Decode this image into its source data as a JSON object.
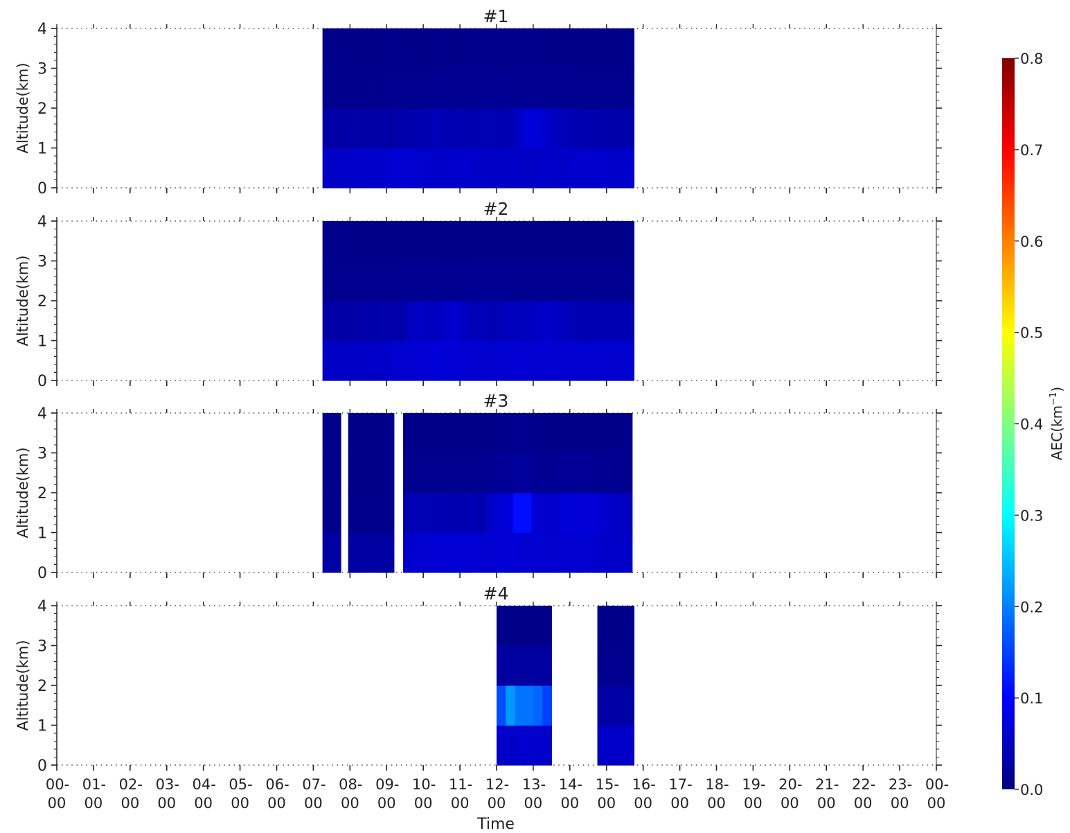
{
  "chart_data": {
    "type": "heatmap",
    "colormap": "jet",
    "xlabel": "Time",
    "ylabel": "Altitude(km)",
    "xlim": [
      0,
      24
    ],
    "ylim": [
      0,
      4
    ],
    "x_ticks": [
      0,
      1,
      2,
      3,
      4,
      5,
      6,
      7,
      8,
      9,
      10,
      11,
      12,
      13,
      14,
      15,
      16,
      17,
      18,
      19,
      20,
      21,
      22,
      23,
      24
    ],
    "x_tick_labels": [
      [
        "00-",
        "00"
      ],
      [
        "01-",
        "00"
      ],
      [
        "02-",
        "00"
      ],
      [
        "03-",
        "00"
      ],
      [
        "04-",
        "00"
      ],
      [
        "05-",
        "00"
      ],
      [
        "06-",
        "00"
      ],
      [
        "07-",
        "00"
      ],
      [
        "08-",
        "00"
      ],
      [
        "09-",
        "00"
      ],
      [
        "10-",
        "00"
      ],
      [
        "11-",
        "00"
      ],
      [
        "12-",
        "00"
      ],
      [
        "13-",
        "00"
      ],
      [
        "14-",
        "00"
      ],
      [
        "15-",
        "00"
      ],
      [
        "16-",
        "00"
      ],
      [
        "17-",
        "00"
      ],
      [
        "18-",
        "00"
      ],
      [
        "19-",
        "00"
      ],
      [
        "20-",
        "00"
      ],
      [
        "21-",
        "00"
      ],
      [
        "22-",
        "00"
      ],
      [
        "23-",
        "00"
      ],
      [
        "00-",
        "00"
      ]
    ],
    "y_ticks": [
      0,
      1,
      2,
      3,
      4
    ],
    "altitude_bins": [
      [
        0,
        1
      ],
      [
        1,
        2
      ],
      [
        2,
        3
      ],
      [
        3,
        4
      ]
    ],
    "colorbar": {
      "label": "AEC(km",
      "label_superscript": "−1",
      "label_close": ")",
      "min": 0.0,
      "max": 0.8,
      "ticks": [
        0.0,
        0.1,
        0.2,
        0.3,
        0.4,
        0.5,
        0.6,
        0.7,
        0.8
      ],
      "tick_labels": [
        "0.0",
        "0.1",
        "0.2",
        "0.3",
        "0.4",
        "0.5",
        "0.6",
        "0.7",
        "0.8"
      ]
    },
    "panels": [
      {
        "title": "#1",
        "segments": [
          {
            "start": 7.25,
            "step": 0.25,
            "rows": [
              [
                0.055,
                0.056,
                0.058,
                0.058,
                0.06,
                0.058,
                0.06,
                0.062,
                0.065,
                0.063,
                0.062,
                0.06,
                0.058,
                0.06,
                0.061,
                0.06,
                0.058,
                0.057,
                0.056,
                0.055,
                0.058,
                0.055,
                0.054,
                0.056,
                0.057,
                0.058,
                0.058,
                0.059,
                0.06,
                0.06,
                0.06,
                0.058,
                0.058,
                0.059
              ],
              [
                0.03,
                0.028,
                0.03,
                0.03,
                0.031,
                0.03,
                0.032,
                0.028,
                0.035,
                0.035,
                0.038,
                0.038,
                0.045,
                0.04,
                0.04,
                0.04,
                0.038,
                0.042,
                0.042,
                0.04,
                0.04,
                0.055,
                0.072,
                0.07,
                0.058,
                0.05,
                0.045,
                0.04,
                0.036,
                0.035,
                0.035,
                0.034,
                0.033,
                0.034
              ],
              [
                0.012,
                0.01,
                0.01,
                0.01,
                0.01,
                0.01,
                0.012,
                0.012,
                0.014,
                0.012,
                0.012,
                0.012,
                0.014,
                0.015,
                0.013,
                0.013,
                0.014,
                0.015,
                0.015,
                0.015,
                0.014,
                0.014,
                0.015,
                0.014,
                0.014,
                0.014,
                0.013,
                0.012,
                0.012,
                0.012,
                0.012,
                0.012,
                0.012,
                0.012
              ],
              [
                0.008,
                0.008,
                0.008,
                0.008,
                0.008,
                0.008,
                0.009,
                0.009,
                0.01,
                0.009,
                0.009,
                0.009,
                0.01,
                0.01,
                0.009,
                0.009,
                0.01,
                0.01,
                0.01,
                0.01,
                0.01,
                0.01,
                0.01,
                0.01,
                0.009,
                0.009,
                0.009,
                0.009,
                0.009,
                0.009,
                0.009,
                0.009,
                0.009,
                0.009
              ]
            ]
          }
        ]
      },
      {
        "title": "#2",
        "segments": [
          {
            "start": 7.25,
            "step": 0.25,
            "rows": [
              [
                0.055,
                0.055,
                0.056,
                0.056,
                0.058,
                0.058,
                0.058,
                0.06,
                0.062,
                0.064,
                0.066,
                0.068,
                0.07,
                0.068,
                0.066,
                0.064,
                0.062,
                0.062,
                0.062,
                0.063,
                0.064,
                0.065,
                0.064,
                0.064,
                0.065,
                0.064,
                0.064,
                0.064,
                0.064,
                0.063,
                0.062,
                0.062,
                0.062,
                0.062
              ],
              [
                0.03,
                0.03,
                0.03,
                0.03,
                0.032,
                0.032,
                0.035,
                0.033,
                0.03,
                0.048,
                0.055,
                0.05,
                0.048,
                0.058,
                0.06,
                0.05,
                0.045,
                0.045,
                0.04,
                0.045,
                0.05,
                0.048,
                0.05,
                0.052,
                0.06,
                0.052,
                0.048,
                0.042,
                0.04,
                0.04,
                0.04,
                0.04,
                0.04,
                0.04
              ],
              [
                0.012,
                0.012,
                0.012,
                0.012,
                0.012,
                0.012,
                0.012,
                0.012,
                0.014,
                0.014,
                0.014,
                0.014,
                0.014,
                0.013,
                0.013,
                0.013,
                0.015,
                0.015,
                0.015,
                0.015,
                0.014,
                0.014,
                0.014,
                0.014,
                0.014,
                0.014,
                0.014,
                0.014,
                0.014,
                0.014,
                0.014,
                0.014,
                0.014,
                0.014
              ],
              [
                0.008,
                0.008,
                0.008,
                0.008,
                0.008,
                0.008,
                0.008,
                0.008,
                0.008,
                0.008,
                0.008,
                0.008,
                0.008,
                0.008,
                0.008,
                0.008,
                0.009,
                0.009,
                0.009,
                0.009,
                0.009,
                0.009,
                0.009,
                0.009,
                0.008,
                0.008,
                0.008,
                0.008,
                0.008,
                0.008,
                0.008,
                0.008,
                0.008,
                0.008
              ]
            ]
          }
        ]
      },
      {
        "title": "#3",
        "segments": [
          {
            "start": 7.25,
            "step": 0.5,
            "rows": [
              [
                0.028
              ],
              [
                0.01
              ],
              [
                0.009
              ],
              [
                0.009
              ]
            ]
          },
          {
            "start": 7.95,
            "step": 1.25,
            "rows": [
              [
                0.028
              ],
              [
                0.01
              ],
              [
                0.009
              ],
              [
                0.009
              ]
            ]
          },
          {
            "start": 9.45,
            "step": 0.25,
            "rows": [
              [
                0.06,
                0.062,
                0.065,
                0.065,
                0.066,
                0.066,
                0.066,
                0.066,
                0.064,
                0.064,
                0.066,
                0.066,
                0.066,
                0.064,
                0.064,
                0.062,
                0.062,
                0.062,
                0.064,
                0.063,
                0.062,
                0.06,
                0.058,
                0.058,
                0.058
              ],
              [
                0.04,
                0.042,
                0.042,
                0.04,
                0.04,
                0.038,
                0.04,
                0.042,
                0.035,
                0.055,
                0.065,
                0.07,
                0.11,
                0.11,
                0.065,
                0.06,
                0.06,
                0.07,
                0.07,
                0.068,
                0.068,
                0.065,
                0.06,
                0.055,
                0.052
              ],
              [
                0.012,
                0.012,
                0.012,
                0.012,
                0.012,
                0.012,
                0.012,
                0.012,
                0.014,
                0.015,
                0.016,
                0.018,
                0.022,
                0.022,
                0.018,
                0.014,
                0.016,
                0.018,
                0.018,
                0.016,
                0.016,
                0.014,
                0.014,
                0.013,
                0.013
              ],
              [
                0.009,
                0.009,
                0.009,
                0.009,
                0.009,
                0.009,
                0.009,
                0.009,
                0.009,
                0.009,
                0.01,
                0.01,
                0.011,
                0.011,
                0.01,
                0.009,
                0.009,
                0.009,
                0.009,
                0.009,
                0.009,
                0.009,
                0.009,
                0.009,
                0.009
              ]
            ]
          }
        ]
      },
      {
        "title": "#4",
        "segments": [
          {
            "start": 12.0,
            "step": 0.25,
            "rows": [
              [
                0.058,
                0.058,
                0.06,
                0.06,
                0.06,
                0.058
              ],
              [
                0.16,
                0.22,
                0.19,
                0.19,
                0.18,
                0.15
              ],
              [
                0.026,
                0.026,
                0.026,
                0.026,
                0.026,
                0.024
              ],
              [
                0.008,
                0.008,
                0.008,
                0.008,
                0.008,
                0.008
              ]
            ]
          },
          {
            "start": 14.75,
            "step": 0.5,
            "rows": [
              [
                0.058,
                0.058
              ],
              [
                0.03,
                0.03
              ],
              [
                0.012,
                0.012
              ],
              [
                0.008,
                0.008
              ]
            ]
          }
        ]
      }
    ]
  }
}
